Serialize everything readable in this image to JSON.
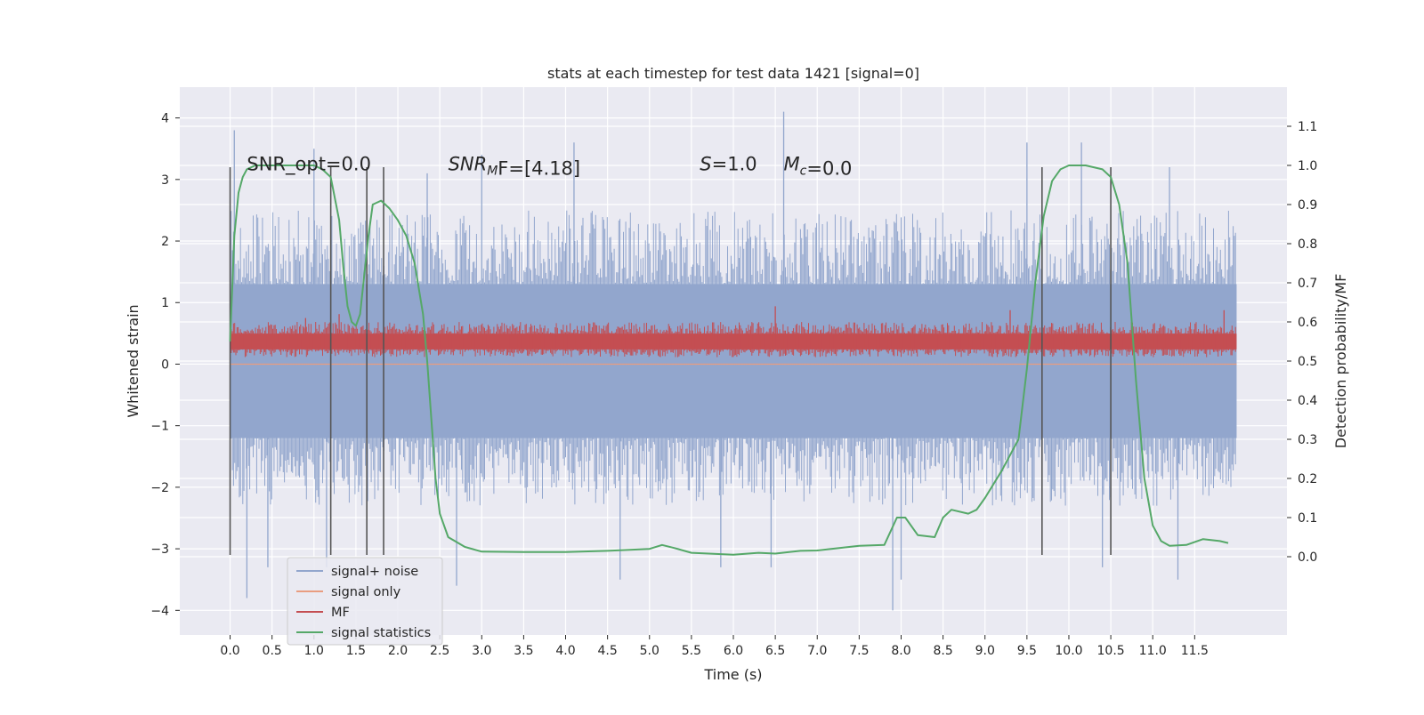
{
  "chart_data": {
    "type": "line",
    "title": "stats at each timestep for test data 1421 [signal=0]",
    "xlabel": "Time (s)",
    "ylabel_left": "Whitened strain",
    "ylabel_right": "Detection probability/MF",
    "xlim": [
      -0.6,
      12.6
    ],
    "ylim_left": [
      -4.4,
      4.5
    ],
    "ylim_right": [
      -0.2,
      1.2
    ],
    "x_ticks": [
      0.0,
      0.5,
      1.0,
      1.5,
      2.0,
      2.5,
      3.0,
      3.5,
      4.0,
      4.5,
      5.0,
      5.5,
      6.0,
      6.5,
      7.0,
      7.5,
      8.0,
      8.5,
      9.0,
      9.5,
      10.0,
      10.5,
      11.0,
      11.5
    ],
    "x_tick_labels": [
      "0.0",
      "0.5",
      "1.0",
      "1.5",
      "2.0",
      "2.5",
      "3.0",
      "3.5",
      "4.0",
      "4.5",
      "5.0",
      "5.5",
      "6.0",
      "6.5",
      "7.0",
      "7.5",
      "8.0",
      "8.5",
      "9.0",
      "9.5",
      "10.0",
      "10.5",
      "11.0",
      "11.5"
    ],
    "y_ticks_left": [
      -4,
      -3,
      -2,
      -1,
      0,
      1,
      2,
      3,
      4
    ],
    "y_tick_labels_left": [
      "−4",
      "−3",
      "−2",
      "−1",
      "0",
      "1",
      "2",
      "3",
      "4"
    ],
    "y_ticks_right": [
      0.0,
      0.1,
      0.2,
      0.3,
      0.4,
      0.5,
      0.6,
      0.7,
      0.8,
      0.9,
      1.0,
      1.1
    ],
    "y_tick_labels_right": [
      "0.0",
      "0.1",
      "0.2",
      "0.3",
      "0.4",
      "0.5",
      "0.6",
      "0.7",
      "0.8",
      "0.9",
      "1.0",
      "1.1"
    ],
    "grid": true,
    "legend_position": "lower-left",
    "annotations": [
      {
        "parts": [
          {
            "t": "SNR_opt=0.0",
            "i": false
          }
        ],
        "x": 0.2,
        "y": 3.25
      },
      {
        "parts": [
          {
            "t": "SNR",
            "i": true
          },
          {
            "t": "M",
            "i": true,
            "sub": true
          },
          {
            "t": "F=[4.18]",
            "i": false
          }
        ],
        "x": 2.6,
        "y": 3.25
      },
      {
        "parts": [
          {
            "t": "S",
            "i": true
          },
          {
            "t": "=1.0",
            "i": false
          }
        ],
        "x": 5.6,
        "y": 3.25
      },
      {
        "parts": [
          {
            "t": "M",
            "i": true
          },
          {
            "t": "c",
            "i": true,
            "sub": true
          },
          {
            "t": "=0.0",
            "i": false
          }
        ],
        "x": 6.6,
        "y": 3.25
      }
    ],
    "vlines": {
      "x": [
        0.0,
        1.2,
        1.63,
        1.83,
        9.68,
        10.5
      ],
      "ymin": -3.1,
      "ymax": 3.2,
      "color": "#555555"
    },
    "series": [
      {
        "name": "signal+ noise",
        "axis": "left",
        "color": "#92a6cd",
        "render": "band",
        "x_range": [
          0.0,
          12.0
        ],
        "core_band": [
          -1.2,
          1.3
        ],
        "typical_envelope": [
          -2.3,
          2.5
        ],
        "peaks_high": [
          [
            0.05,
            3.8
          ],
          [
            1.0,
            3.5
          ],
          [
            2.35,
            3.1
          ],
          [
            3.0,
            3.4
          ],
          [
            4.1,
            3.6
          ],
          [
            6.6,
            4.1
          ],
          [
            9.5,
            3.6
          ],
          [
            10.15,
            3.6
          ],
          [
            11.2,
            3.2
          ]
        ],
        "peaks_low": [
          [
            0.2,
            -3.8
          ],
          [
            0.45,
            -3.3
          ],
          [
            1.15,
            -3.3
          ],
          [
            2.7,
            -3.6
          ],
          [
            4.65,
            -3.5
          ],
          [
            5.85,
            -3.3
          ],
          [
            6.45,
            -3.3
          ],
          [
            7.9,
            -4.0
          ],
          [
            8.0,
            -3.5
          ],
          [
            10.4,
            -3.3
          ],
          [
            11.3,
            -3.5
          ]
        ]
      },
      {
        "name": "signal only",
        "axis": "left",
        "color": "#e99d80",
        "render": "line",
        "x": [
          0.0,
          12.0
        ],
        "y": [
          0.0,
          0.0
        ]
      },
      {
        "name": "MF",
        "axis": "right",
        "color": "#c44e52",
        "render": "band",
        "x_range": [
          0.0,
          12.0
        ],
        "core_band": [
          0.53,
          0.57
        ],
        "typical_envelope": [
          0.51,
          0.6
        ],
        "peaks_high": [
          [
            0.9,
            0.61
          ],
          [
            1.3,
            0.62
          ],
          [
            6.5,
            0.64
          ],
          [
            9.3,
            0.63
          ],
          [
            11.85,
            0.63
          ]
        ],
        "peaks_low": []
      },
      {
        "name": "signal statistics",
        "axis": "right",
        "color": "#55a868",
        "render": "line",
        "x": [
          0.0,
          0.05,
          0.1,
          0.15,
          0.2,
          0.3,
          0.5,
          0.8,
          1.0,
          1.1,
          1.2,
          1.3,
          1.35,
          1.4,
          1.45,
          1.5,
          1.55,
          1.6,
          1.65,
          1.7,
          1.8,
          1.9,
          2.0,
          2.1,
          2.2,
          2.3,
          2.35,
          2.4,
          2.45,
          2.5,
          2.6,
          2.8,
          3.0,
          3.5,
          4.0,
          4.5,
          5.0,
          5.15,
          5.3,
          5.5,
          6.0,
          6.3,
          6.5,
          6.8,
          7.0,
          7.5,
          7.8,
          7.95,
          8.05,
          8.2,
          8.4,
          8.5,
          8.6,
          8.8,
          8.9,
          9.0,
          9.2,
          9.4,
          9.5,
          9.6,
          9.7,
          9.8,
          9.9,
          10.0,
          10.2,
          10.4,
          10.5,
          10.6,
          10.7,
          10.8,
          10.9,
          11.0,
          11.1,
          11.2,
          11.4,
          11.6,
          11.8,
          11.9
        ],
        "y": [
          0.55,
          0.82,
          0.93,
          0.97,
          0.99,
          1.0,
          1.0,
          1.0,
          1.0,
          0.99,
          0.97,
          0.86,
          0.74,
          0.64,
          0.6,
          0.59,
          0.62,
          0.72,
          0.82,
          0.9,
          0.91,
          0.89,
          0.86,
          0.82,
          0.75,
          0.62,
          0.5,
          0.35,
          0.2,
          0.11,
          0.05,
          0.025,
          0.013,
          0.012,
          0.012,
          0.015,
          0.02,
          0.03,
          0.022,
          0.01,
          0.005,
          0.01,
          0.008,
          0.015,
          0.016,
          0.028,
          0.03,
          0.1,
          0.1,
          0.055,
          0.05,
          0.1,
          0.12,
          0.11,
          0.12,
          0.15,
          0.22,
          0.3,
          0.48,
          0.7,
          0.87,
          0.96,
          0.99,
          1.0,
          1.0,
          0.99,
          0.97,
          0.9,
          0.75,
          0.45,
          0.2,
          0.08,
          0.04,
          0.028,
          0.03,
          0.045,
          0.04,
          0.035
        ]
      }
    ]
  }
}
